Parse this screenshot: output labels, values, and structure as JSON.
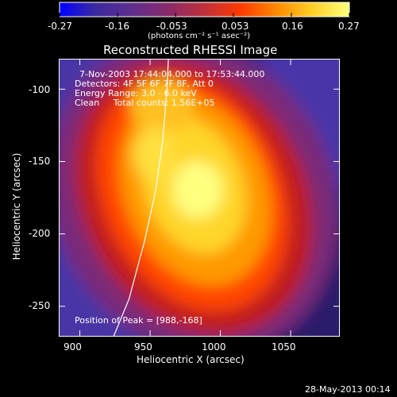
{
  "colors": {
    "background": "#000000",
    "text": "#ffffff",
    "colormap": [
      "#0000ff",
      "#3c2aa0",
      "#5e2e8e",
      "#8a2a6a",
      "#c0303a",
      "#ff3a00",
      "#ff8a00",
      "#ffd028",
      "#ffff7a"
    ]
  },
  "colorbar": {
    "ticks": [
      "-0.27",
      "-0.16",
      "-0.053",
      "0.053",
      "0.16",
      "0.27"
    ],
    "units_label": "(photons cm⁻² s⁻¹ asec⁻²)",
    "range": [
      -0.27,
      0.27
    ]
  },
  "chart": {
    "title": "Reconstructed RHESSI Image",
    "info_lines": [
      "7-Nov-2003 17:44:04.000 to 17:53:44.000",
      "Detectors: 4F 5F 6F 7F 8F, Att 0",
      "Energy Range: 3.0 - 6.0 keV",
      "Clean     Total counts: 1.56E+05"
    ],
    "peak_label": "Position of Peak = [988,-168]"
  },
  "footer": {
    "date": "28-May-2013 00:14"
  },
  "chart_data": {
    "type": "heatmap",
    "title": "Reconstructed RHESSI Image",
    "xlabel": "Heliocentric X (arcsec)",
    "ylabel": "Heliocentric Y (arcsec)",
    "xlim": [
      885,
      1085
    ],
    "ylim": [
      -271,
      -79
    ],
    "xticks": [
      900,
      950,
      1000,
      1050
    ],
    "yticks": [
      -100,
      -150,
      -200,
      -250
    ],
    "colorbar_range": [
      -0.27,
      0.27
    ],
    "colorbar_label": "(photons cm⁻² s⁻¹ asec⁻²)",
    "peak": [
      988,
      -168
    ],
    "source_ellipse": {
      "center": [
        985,
        -175
      ],
      "semi_axes": [
        48,
        88
      ],
      "rotation_deg": -25
    },
    "limb_curve": [
      [
        921,
        -278
      ],
      [
        935,
        -245
      ],
      [
        946,
        -205
      ],
      [
        954,
        -170
      ],
      [
        959,
        -135
      ],
      [
        962,
        -100
      ],
      [
        963,
        -79
      ]
    ]
  }
}
